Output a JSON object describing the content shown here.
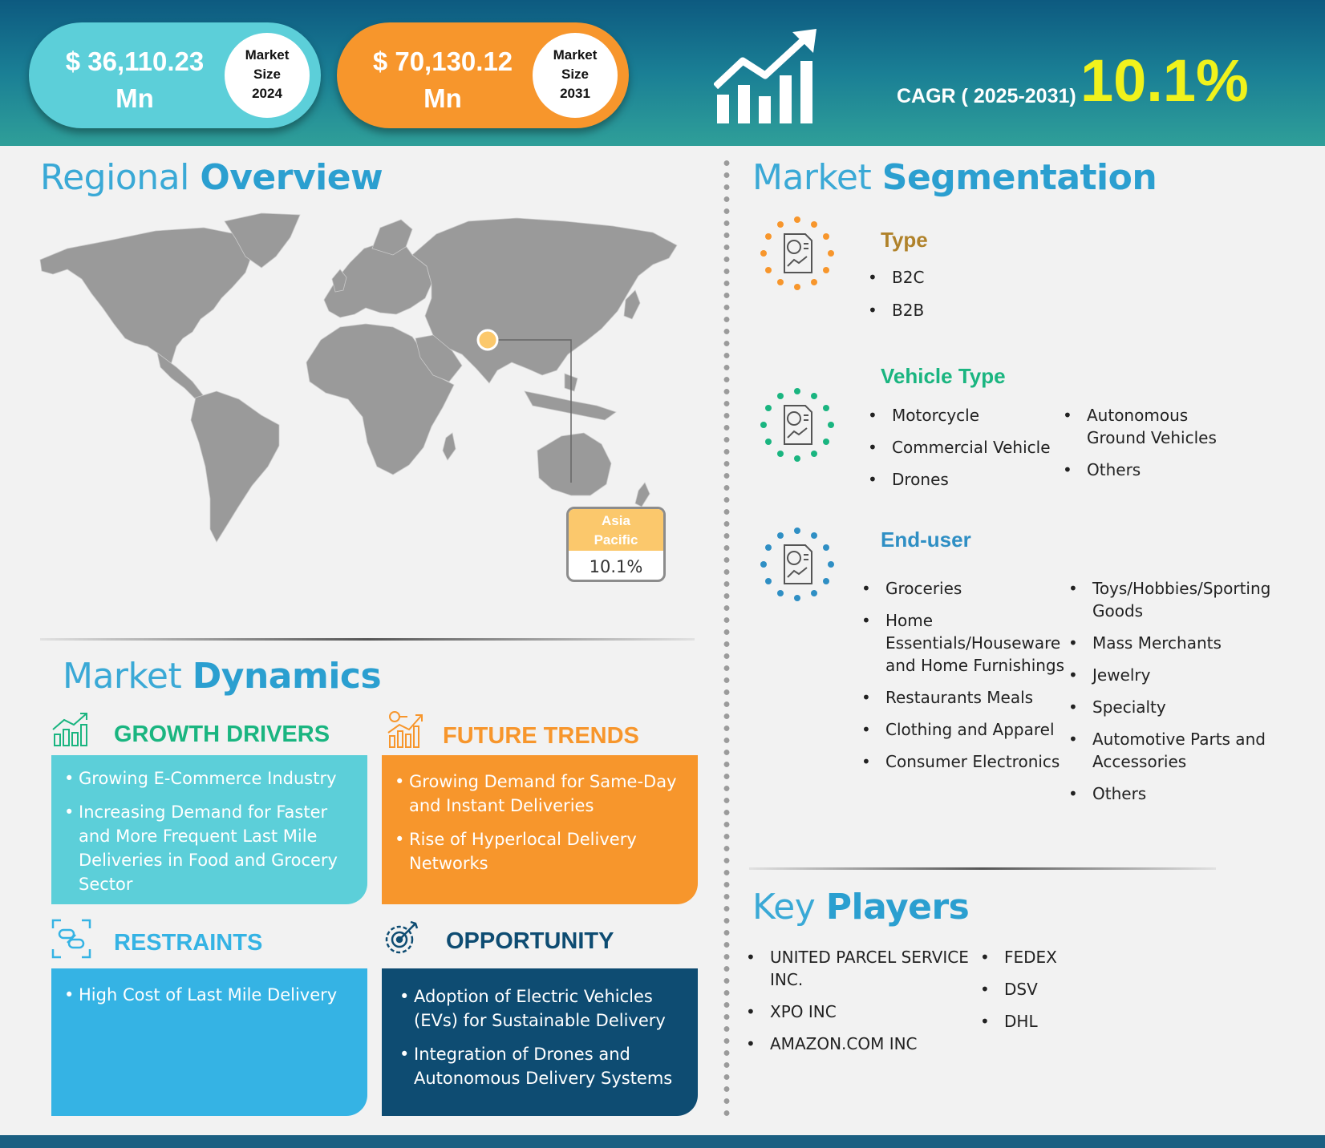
{
  "header": {
    "size_2024": {
      "value_line1": "$  36,110.23",
      "value_line2": "Mn",
      "label_line1": "Market",
      "label_line2": "Size",
      "label_line3": "2024"
    },
    "size_2031": {
      "value_line1": "$  70,130.12",
      "value_line2": "Mn",
      "label_line1": "Market",
      "label_line2": "Size",
      "label_line3": "2031"
    },
    "cagr_label": "CAGR ( 2025-2031)",
    "cagr_value": "10.1%"
  },
  "regional": {
    "title_light": "Regional",
    "title_bold": "Overview",
    "region_name_line1": "Asia",
    "region_name_line2": "Pacific",
    "region_cagr": "10.1%"
  },
  "dynamics": {
    "title_light": "Market",
    "title_bold": "Dynamics",
    "growth_drivers": {
      "heading": "GROWTH DRIVERS",
      "items": [
        "Growing E-Commerce Industry",
        "Increasing Demand for Faster and More Frequent Last Mile Deliveries in Food and Grocery Sector"
      ]
    },
    "future_trends": {
      "heading": "FUTURE TRENDS",
      "items": [
        "Growing Demand for Same-Day and Instant Deliveries",
        "Rise of Hyperlocal Delivery Networks"
      ]
    },
    "restraints": {
      "heading": "RESTRAINTS",
      "items": [
        "High Cost of Last Mile Delivery"
      ]
    },
    "opportunity": {
      "heading": "OPPORTUNITY",
      "items": [
        "Adoption of Electric Vehicles (EVs) for Sustainable Delivery",
        "Integration of Drones and Autonomous Delivery Systems"
      ]
    }
  },
  "segmentation": {
    "title_light": "Market",
    "title_bold": "Segmentation",
    "type": {
      "heading": "Type",
      "items": [
        "B2C",
        "B2B"
      ]
    },
    "vehicle_type": {
      "heading": "Vehicle Type",
      "col1": [
        "Motorcycle",
        "Commercial Vehicle",
        "Drones"
      ],
      "col2": [
        "Autonomous Ground Vehicles",
        "Others"
      ]
    },
    "end_user": {
      "heading": "End-user",
      "col1": [
        "Groceries",
        "Home Essentials/Houseware and Home Furnishings",
        "Restaurants Meals",
        "Clothing and Apparel",
        "Consumer Electronics"
      ],
      "col2": [
        "Toys/Hobbies/Sporting Goods",
        "Mass Merchants",
        "Jewelry",
        "Specialty",
        "Automotive Parts and Accessories",
        "Others"
      ]
    }
  },
  "key_players": {
    "title_light": "Key",
    "title_bold": "Players",
    "col1": [
      "UNITED PARCEL SERVICE INC.",
      "XPO INC",
      "AMAZON.COM INC"
    ],
    "col2": [
      "FEDEX",
      "DSV",
      "DHL"
    ]
  },
  "colors": {
    "teal": "#5ccfd9",
    "orange": "#f7962c",
    "cyan": "#35b3e4",
    "navy": "#0e4c72",
    "yellow": "#f0f21c",
    "green": "#1ab580",
    "gold": "#b0822a"
  }
}
